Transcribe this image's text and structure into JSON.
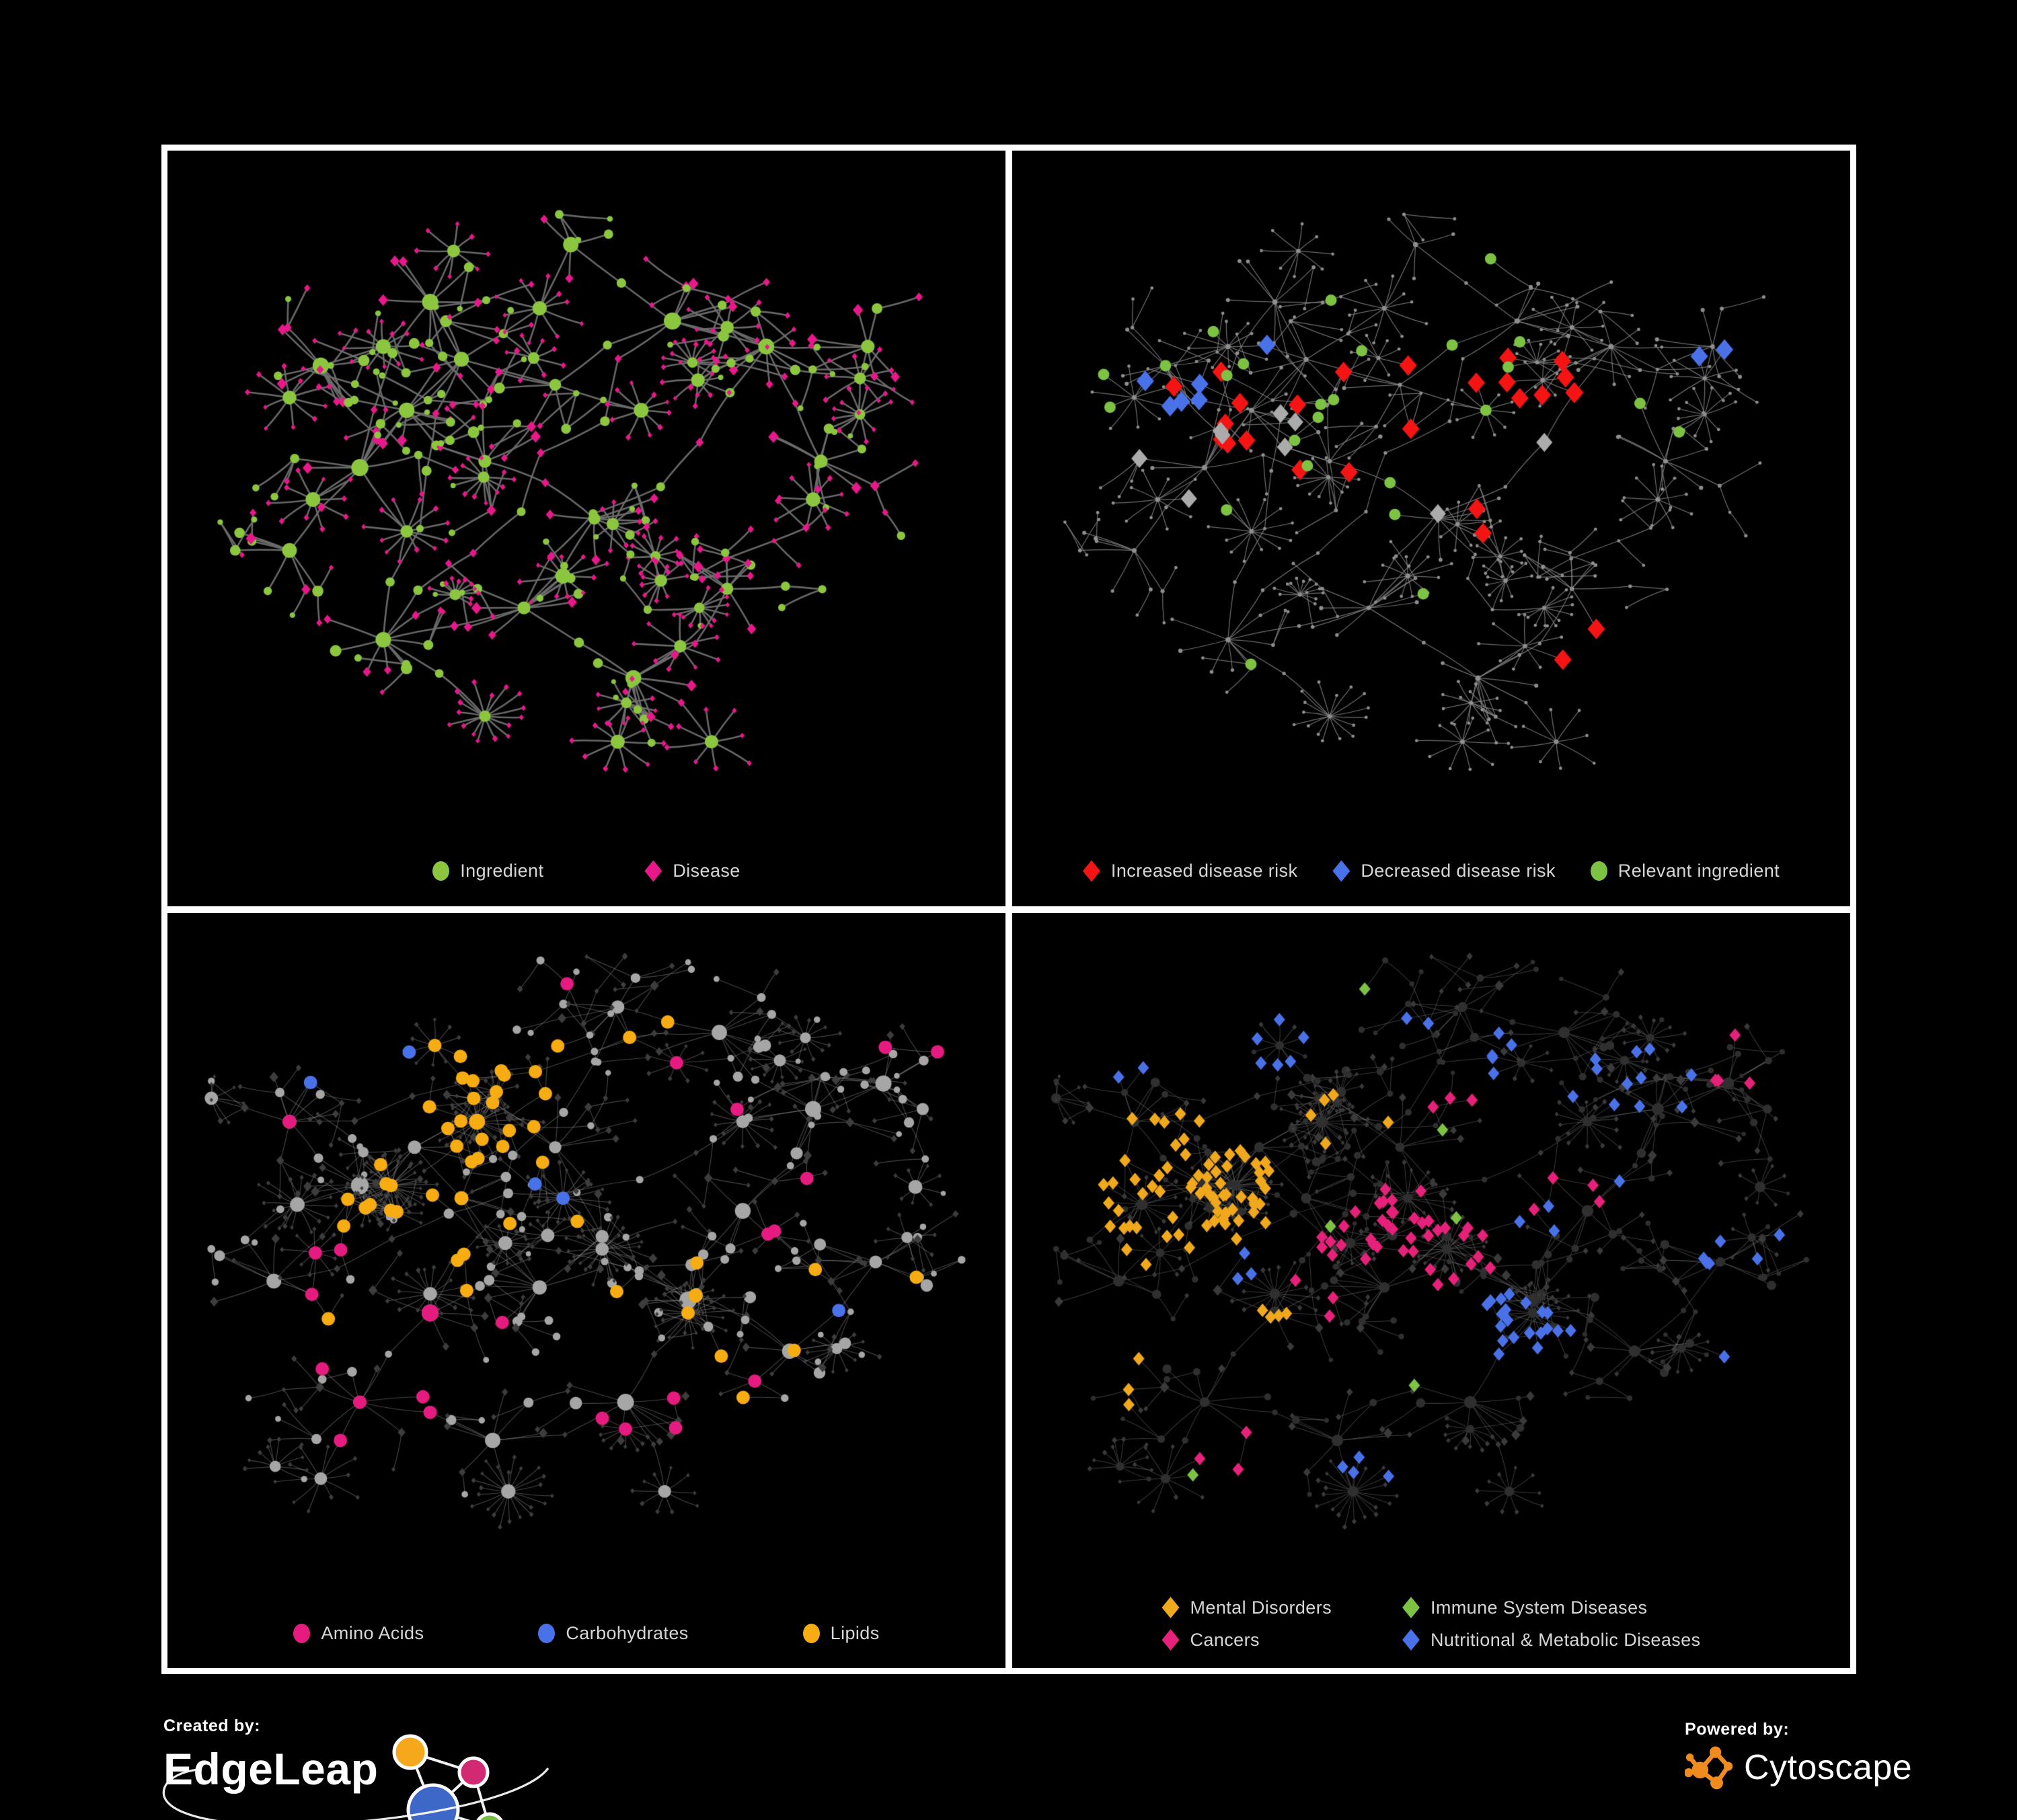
{
  "panels": [
    {
      "id": "ingredient-disease",
      "legend": [
        {
          "label": "Ingredient",
          "color": "#8CC63F",
          "shape": "circle"
        },
        {
          "label": "Disease",
          "color": "#E8188B",
          "shape": "diamond"
        }
      ]
    },
    {
      "id": "disease-risk",
      "legend": [
        {
          "label": "Increased disease risk",
          "color": "#F51414",
          "shape": "diamond"
        },
        {
          "label": "Decreased disease risk",
          "color": "#4A72E8",
          "shape": "diamond"
        },
        {
          "label": "Relevant ingredient",
          "color": "#7DC242",
          "shape": "circle"
        }
      ]
    },
    {
      "id": "nutrient-classes",
      "legend": [
        {
          "label": "Amino Acids",
          "color": "#E61B80",
          "shape": "circle"
        },
        {
          "label": "Carbohydrates",
          "color": "#4A72E8",
          "shape": "circle"
        },
        {
          "label": "Lipids",
          "color": "#F7AC12",
          "shape": "circle"
        }
      ]
    },
    {
      "id": "disease-classes",
      "legend": [
        {
          "label": "Mental Disorders",
          "color": "#F0A81C",
          "shape": "diamond"
        },
        {
          "label": "Immune System Diseases",
          "color": "#7DC242",
          "shape": "diamond"
        },
        {
          "label": "Cancers",
          "color": "#E62179",
          "shape": "diamond"
        },
        {
          "label": "Nutritional & Metabolic Diseases",
          "color": "#4A72E8",
          "shape": "diamond"
        }
      ]
    }
  ],
  "footer": {
    "created_by": "Created by:",
    "creator": "EdgeLeap",
    "powered_by": "Powered by:",
    "engine": "Cytoscape"
  },
  "brand_colors": {
    "edgeleap_orange": "#F5A81C",
    "edgeleap_magenta": "#D22A72",
    "edgeleap_blue": "#3E68C8",
    "edgeleap_green": "#74BE44",
    "cytoscape_orange": "#F08C1E",
    "frame_border": "#FFFFFF",
    "background": "#000000",
    "legend_text": "#D6D6D6"
  },
  "network": {
    "rows": [
      {
        "seed": 913371,
        "roots": [
          [
            0.27,
            0.38
          ],
          [
            0.34,
            0.3
          ],
          [
            0.21,
            0.47
          ],
          [
            0.37,
            0.46
          ],
          [
            0.3,
            0.21
          ],
          [
            0.16,
            0.31
          ],
          [
            0.46,
            0.34
          ],
          [
            0.51,
            0.55
          ],
          [
            0.42,
            0.69
          ],
          [
            0.24,
            0.74
          ],
          [
            0.61,
            0.24
          ],
          [
            0.73,
            0.28
          ],
          [
            0.8,
            0.46
          ],
          [
            0.56,
            0.8
          ],
          [
            0.68,
            0.66
          ],
          [
            0.86,
            0.28
          ],
          [
            0.48,
            0.12
          ],
          [
            0.12,
            0.6
          ]
        ],
        "stars": [
          [
            0.37,
            0.86,
            16
          ],
          [
            0.27,
            0.57,
            12
          ],
          [
            0.15,
            0.52,
            10
          ],
          [
            0.47,
            0.64,
            11
          ],
          [
            0.62,
            0.75,
            9
          ],
          [
            0.12,
            0.36,
            10
          ],
          [
            0.24,
            0.28,
            12
          ],
          [
            0.57,
            0.38,
            10
          ],
          [
            0.68,
            0.25,
            10
          ],
          [
            0.79,
            0.52,
            9
          ],
          [
            0.85,
            0.33,
            9
          ],
          [
            0.44,
            0.22,
            10
          ],
          [
            0.33,
            0.13,
            8
          ],
          [
            0.54,
            0.9,
            10
          ],
          [
            0.66,
            0.9,
            8
          ]
        ],
        "fuzz": false,
        "extra": 5
      },
      {
        "seed": 424243,
        "roots": [
          [
            0.21,
            0.4
          ],
          [
            0.28,
            0.34
          ],
          [
            0.34,
            0.42
          ],
          [
            0.38,
            0.27
          ],
          [
            0.46,
            0.34
          ],
          [
            0.52,
            0.48
          ],
          [
            0.44,
            0.56
          ],
          [
            0.3,
            0.6
          ],
          [
            0.21,
            0.74
          ],
          [
            0.38,
            0.8
          ],
          [
            0.55,
            0.74
          ],
          [
            0.63,
            0.58
          ],
          [
            0.7,
            0.44
          ],
          [
            0.79,
            0.28
          ],
          [
            0.88,
            0.24
          ],
          [
            0.67,
            0.16
          ],
          [
            0.54,
            0.12
          ],
          [
            0.76,
            0.66
          ],
          [
            0.87,
            0.52
          ],
          [
            0.12,
            0.3
          ],
          [
            0.1,
            0.55
          ]
        ],
        "stars": [
          [
            0.25,
            0.4,
            34
          ],
          [
            0.36,
            0.3,
            30
          ],
          [
            0.52,
            0.5,
            26
          ],
          [
            0.63,
            0.6,
            24
          ],
          [
            0.3,
            0.57,
            18
          ],
          [
            0.7,
            0.3,
            14
          ],
          [
            0.4,
            0.88,
            22
          ],
          [
            0.13,
            0.43,
            16
          ],
          [
            0.47,
            0.42,
            20
          ],
          [
            0.6,
            0.88,
            10
          ],
          [
            0.16,
            0.86,
            10
          ]
        ],
        "fuzz": true,
        "extra": 8
      }
    ],
    "panel_styles": [
      {
        "row": 0,
        "mode": "two-tone",
        "circle_color": "#8CC63F",
        "diamond_color": "#E8188B",
        "edge": "rgba(110,110,110,0.95)",
        "edge_width": 2.6
      },
      {
        "row": 0,
        "mode": "dim-base",
        "base_color": "#8E8E8E",
        "edge": "rgba(135,135,135,0.8)",
        "edge_width": 1.25,
        "overlays": [
          {
            "shape": "diamond",
            "color": "#F51414",
            "size": 13,
            "picks": [
              [
                0.42,
                0.35,
                0.27,
                0.15,
                22
              ],
              [
                0.71,
                0.8,
                0.07,
                0.08,
                2
              ],
              [
                0.57,
                0.52,
                0.08,
                0.06,
                2
              ]
            ]
          },
          {
            "shape": "diamond",
            "color": "#4A72E8",
            "size": 13,
            "picks": [
              [
                0.14,
                0.36,
                0.08,
                0.1,
                5
              ],
              [
                0.85,
                0.3,
                0.045,
                0.035,
                2
              ],
              [
                0.27,
                0.3,
                0.04,
                0.04,
                1
              ]
            ]
          },
          {
            "shape": "diamond",
            "color": "#ABABAB",
            "size": 12,
            "picks": [
              [
                0.33,
                0.45,
                0.24,
                0.16,
                8
              ],
              [
                0.62,
                0.47,
                0.05,
                0.05,
                1
              ]
            ]
          },
          {
            "shape": "circle",
            "color": "#7DC242",
            "size": 8.5,
            "picks": [
              [
                0.36,
                0.37,
                0.3,
                0.2,
                20
              ],
              [
                0.52,
                0.7,
                0.05,
                0.05,
                1
              ],
              [
                0.74,
                0.4,
                0.05,
                0.05,
                1
              ],
              [
                0.28,
                0.74,
                0.05,
                0.05,
                1
              ],
              [
                0.6,
                0.13,
                0.05,
                0.05,
                1
              ],
              [
                0.86,
                0.42,
                0.05,
                0.05,
                1
              ]
            ]
          }
        ]
      },
      {
        "row": 1,
        "mode": "classed-circles",
        "circle_color": "#A6A6A6",
        "diamond_color": "#3D3D3D",
        "edge": "rgba(165,165,165,0.42)",
        "edge_width": 1.15,
        "overlays": [
          {
            "shape": "circle",
            "color": "#F7AC12",
            "picks": [
              [
                0.36,
                0.26,
                0.11,
                0.1,
                26
              ],
              [
                0.3,
                0.44,
                0.11,
                0.09,
                12
              ],
              [
                0.53,
                0.6,
                0.05,
                0.045,
                6
              ],
              [
                0.5,
                0.5,
                0.45,
                0.4,
                18
              ]
            ]
          },
          {
            "shape": "circle",
            "color": "#4A72E8",
            "picks": [
              [
                0.4,
                0.29,
                0.07,
                0.06,
                8
              ],
              [
                0.13,
                0.22,
                0.035,
                0.035,
                1
              ],
              [
                0.79,
                0.6,
                0.035,
                0.035,
                1
              ],
              [
                0.47,
                0.4,
                0.05,
                0.05,
                2
              ],
              [
                0.24,
                0.18,
                0.04,
                0.04,
                2
              ]
            ]
          },
          {
            "shape": "circle",
            "color": "#E61B80",
            "picks": [
              [
                0.13,
                0.6,
                0.1,
                0.12,
                4
              ],
              [
                0.25,
                0.8,
                0.12,
                0.08,
                4
              ],
              [
                0.55,
                0.83,
                0.1,
                0.07,
                3
              ],
              [
                0.65,
                0.7,
                0.08,
                0.06,
                3
              ],
              [
                0.8,
                0.45,
                0.1,
                0.1,
                3
              ],
              [
                0.9,
                0.2,
                0.06,
                0.06,
                2
              ],
              [
                0.6,
                0.2,
                0.07,
                0.06,
                3
              ],
              [
                0.35,
                0.6,
                0.06,
                0.05,
                2
              ],
              [
                0.47,
                0.05,
                0.04,
                0.04,
                1
              ],
              [
                0.09,
                0.3,
                0.04,
                0.05,
                2
              ],
              [
                0.7,
                0.3,
                0.05,
                0.05,
                1
              ]
            ]
          }
        ]
      },
      {
        "row": 1,
        "mode": "classed-diamonds",
        "circle_color": "#2F2F2F",
        "diamond_color": "#3A3A3A",
        "edge": "rgba(150,150,150,0.38)",
        "edge_width": 1.05,
        "overlays": [
          {
            "shape": "diamond",
            "color": "#F0A81C",
            "picks": [
              [
                0.17,
                0.41,
                0.13,
                0.13,
                72
              ],
              [
                0.4,
                0.3,
                0.06,
                0.05,
                5
              ],
              [
                0.3,
                0.64,
                0.05,
                0.05,
                4
              ],
              [
                0.55,
                0.75,
                0.04,
                0.04,
                2
              ],
              [
                0.1,
                0.7,
                0.05,
                0.05,
                3
              ],
              [
                0.64,
                0.12,
                0.04,
                0.04,
                2
              ]
            ]
          },
          {
            "shape": "diamond",
            "color": "#E62179",
            "picks": [
              [
                0.44,
                0.51,
                0.14,
                0.11,
                42
              ],
              [
                0.9,
                0.21,
                0.05,
                0.05,
                5
              ],
              [
                0.66,
                0.42,
                0.06,
                0.05,
                4
              ],
              [
                0.25,
                0.8,
                0.06,
                0.05,
                4
              ],
              [
                0.52,
                0.25,
                0.05,
                0.05,
                3
              ],
              [
                0.8,
                0.78,
                0.05,
                0.05,
                2
              ],
              [
                0.35,
                0.7,
                0.04,
                0.04,
                2
              ]
            ]
          },
          {
            "shape": "diamond",
            "color": "#4A72E8",
            "picks": [
              [
                0.6,
                0.63,
                0.08,
                0.06,
                20
              ],
              [
                0.75,
                0.3,
                0.12,
                0.12,
                12
              ],
              [
                0.87,
                0.48,
                0.08,
                0.08,
                6
              ],
              [
                0.55,
                0.15,
                0.1,
                0.08,
                7
              ],
              [
                0.3,
                0.15,
                0.08,
                0.08,
                6
              ],
              [
                0.12,
                0.25,
                0.05,
                0.05,
                3
              ],
              [
                0.45,
                0.85,
                0.08,
                0.06,
                4
              ],
              [
                0.7,
                0.85,
                0.06,
                0.05,
                3
              ],
              [
                0.9,
                0.7,
                0.05,
                0.05,
                3
              ],
              [
                0.25,
                0.5,
                0.05,
                0.05,
                3
              ],
              [
                0.85,
                0.1,
                0.05,
                0.05,
                4
              ],
              [
                0.62,
                0.45,
                0.05,
                0.04,
                3
              ]
            ]
          },
          {
            "shape": "diamond",
            "color": "#7DC242",
            "picks": [
              [
                0.49,
                0.33,
                0.03,
                0.03,
                1
              ],
              [
                0.52,
                0.44,
                0.03,
                0.03,
                1
              ],
              [
                0.45,
                0.55,
                0.03,
                0.03,
                1
              ],
              [
                0.2,
                0.88,
                0.03,
                0.03,
                1
              ],
              [
                0.56,
                0.67,
                0.03,
                0.03,
                1
              ],
              [
                0.36,
                0.44,
                0.03,
                0.03,
                1
              ],
              [
                0.86,
                0.6,
                0.03,
                0.03,
                1
              ],
              [
                0.5,
                0.7,
                0.03,
                0.03,
                1
              ],
              [
                0.63,
                0.3,
                0.03,
                0.03,
                1
              ],
              [
                0.42,
                0.12,
                0.03,
                0.03,
                1
              ]
            ]
          }
        ]
      }
    ]
  }
}
